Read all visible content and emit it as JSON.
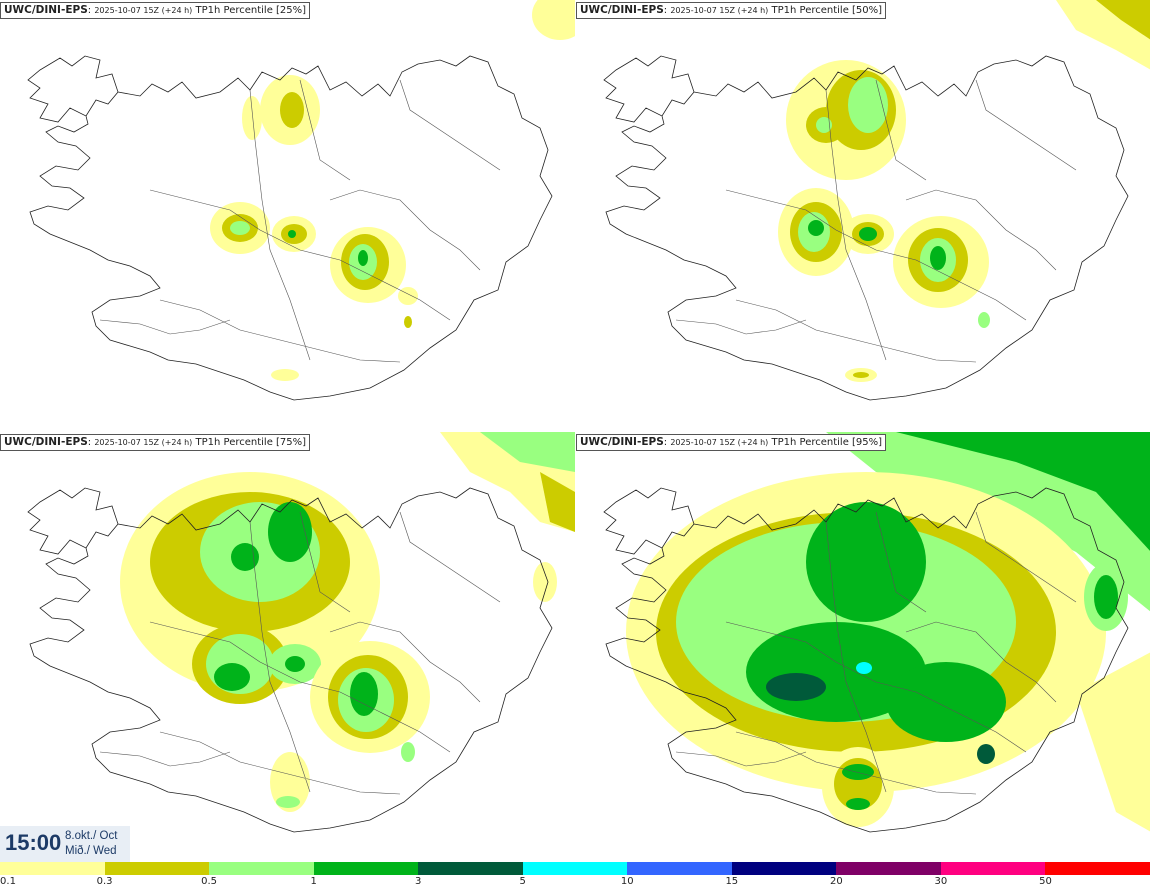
{
  "panels": [
    {
      "source": "UWC/DINI-EPS",
      "run": "2025-10-07 15Z (+24 h)",
      "field": "TP1h Percentile [25%]"
    },
    {
      "source": "UWC/DINI-EPS",
      "run": "2025-10-07 15Z (+24 h)",
      "field": "TP1h Percentile [50%]"
    },
    {
      "source": "UWC/DINI-EPS",
      "run": "2025-10-07 15Z (+24 h)",
      "field": "TP1h Percentile [75%]"
    },
    {
      "source": "UWC/DINI-EPS",
      "run": "2025-10-07 15Z (+24 h)",
      "field": "TP1h Percentile [95%]"
    }
  ],
  "valid_time": {
    "time": "15:00",
    "date_line": "8.okt./ Oct",
    "day_line": "Mið./ Wed"
  },
  "legend": {
    "ticks": [
      "0.1",
      "0.3",
      "0.5",
      "1",
      "3",
      "5",
      "10",
      "15",
      "20",
      "30",
      "50"
    ],
    "colors": [
      "#ffff99",
      "#cccc00",
      "#99ff80",
      "#00b31a",
      "#005a3a",
      "#00ffff",
      "#3366ff",
      "#00007f",
      "#7f0066",
      "#ff0080",
      "#ff0000"
    ]
  }
}
